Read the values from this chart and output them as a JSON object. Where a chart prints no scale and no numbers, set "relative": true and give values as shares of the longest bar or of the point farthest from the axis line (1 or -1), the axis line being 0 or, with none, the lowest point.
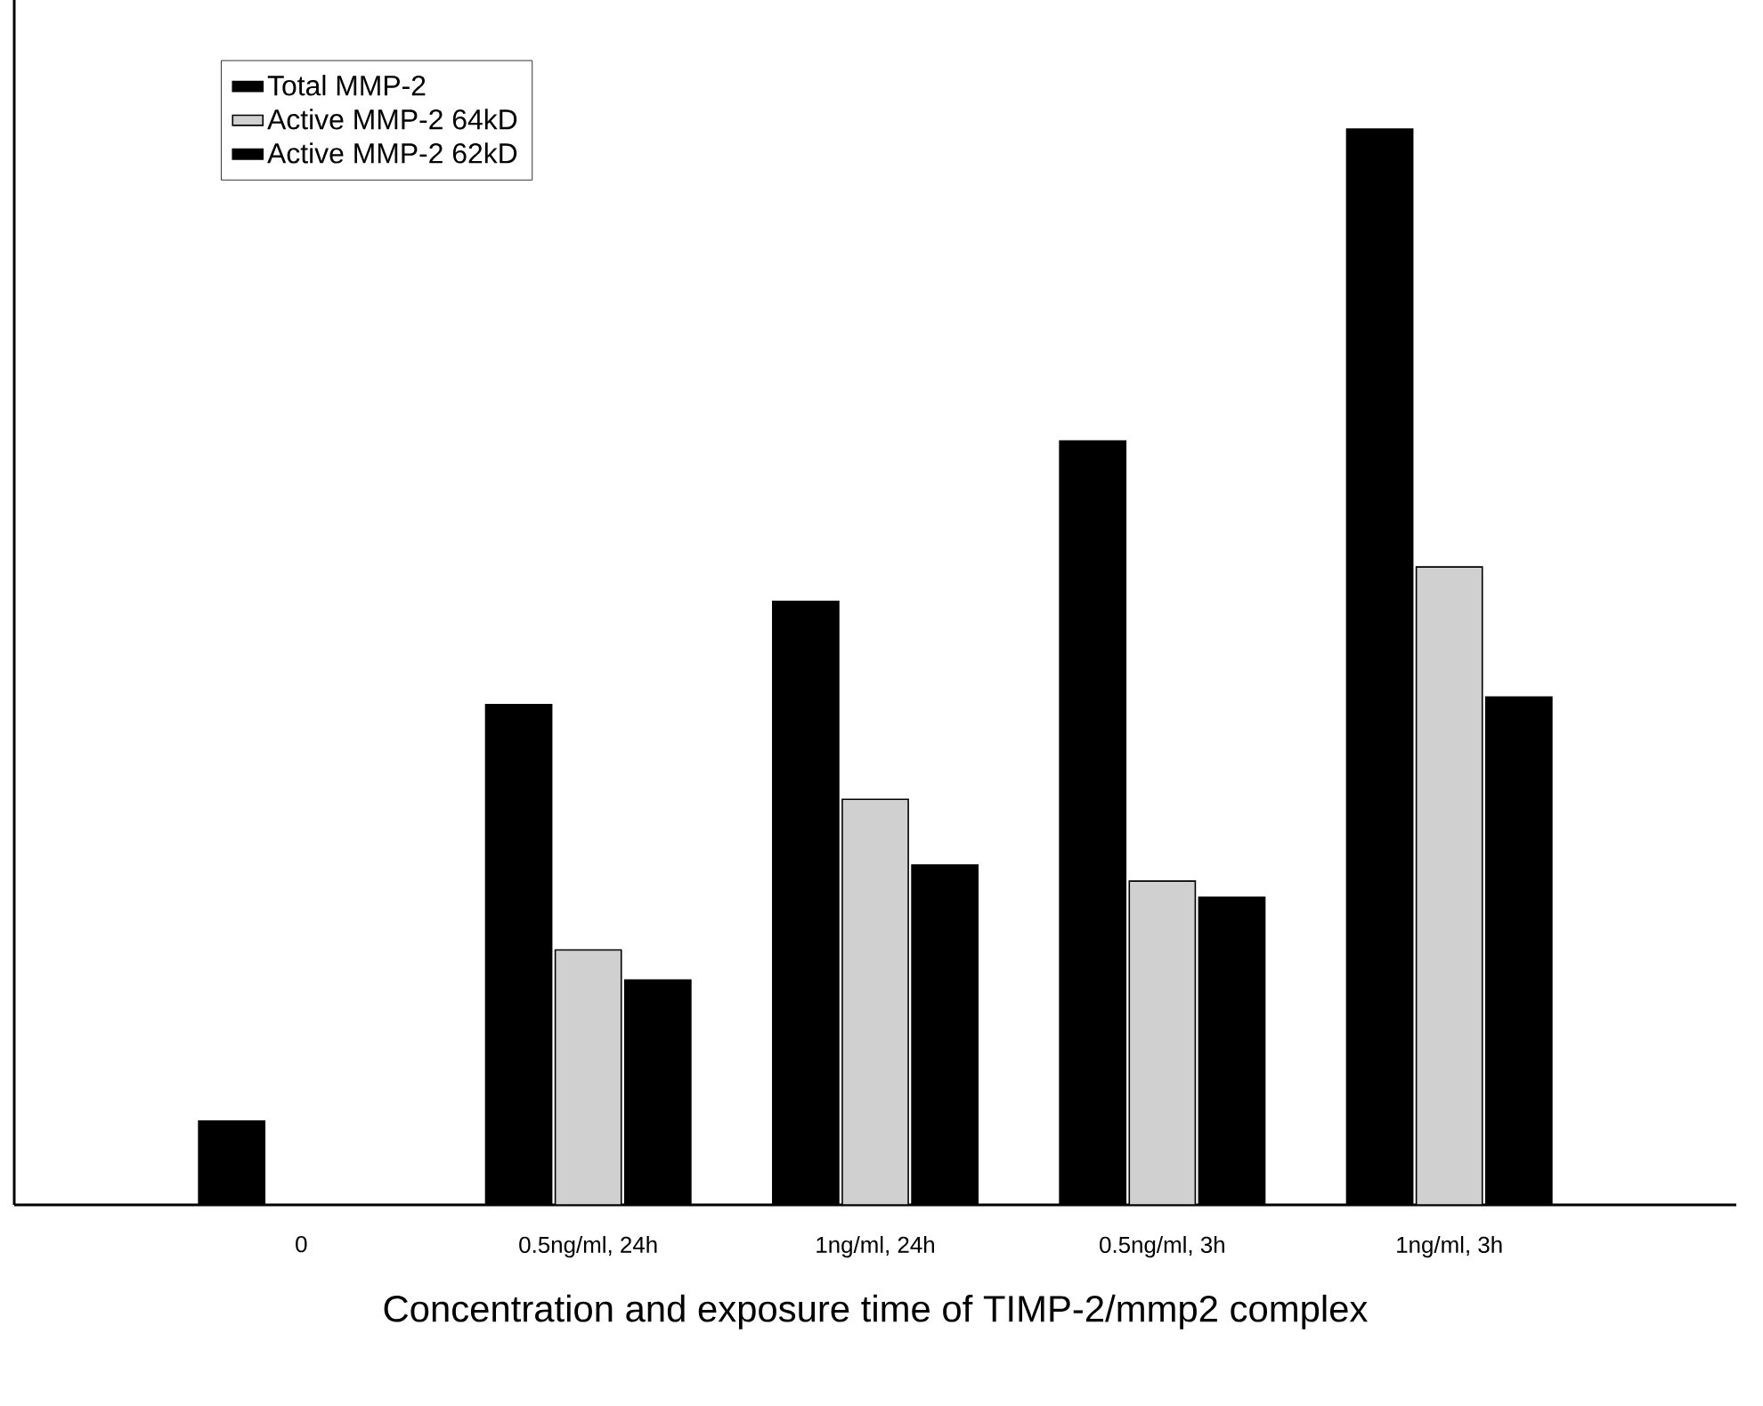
{
  "chart_data": {
    "type": "bar",
    "relative": true,
    "xlabel": "Concentration and exposure time of TIMP-2/mmp2 complex",
    "categories": [
      "0",
      "0.5ng/ml, 24h",
      "1ng/ml, 24h",
      "0.5ng/ml, 3h",
      "1ng/ml, 3h"
    ],
    "series": [
      {
        "name": "Total MMP-2",
        "color": "#000000",
        "values": [
          0.078,
          0.465,
          0.561,
          0.71,
          1.0
        ]
      },
      {
        "name": "Active MMP-2 64kD",
        "color": "#d0d0d0",
        "values": [
          null,
          0.237,
          0.377,
          0.301,
          0.593
        ]
      },
      {
        "name": "Active MMP-2 62kD",
        "color": "#000000",
        "values": [
          null,
          0.209,
          0.316,
          0.286,
          0.472
        ]
      }
    ],
    "legend": "top left",
    "grid": false
  }
}
